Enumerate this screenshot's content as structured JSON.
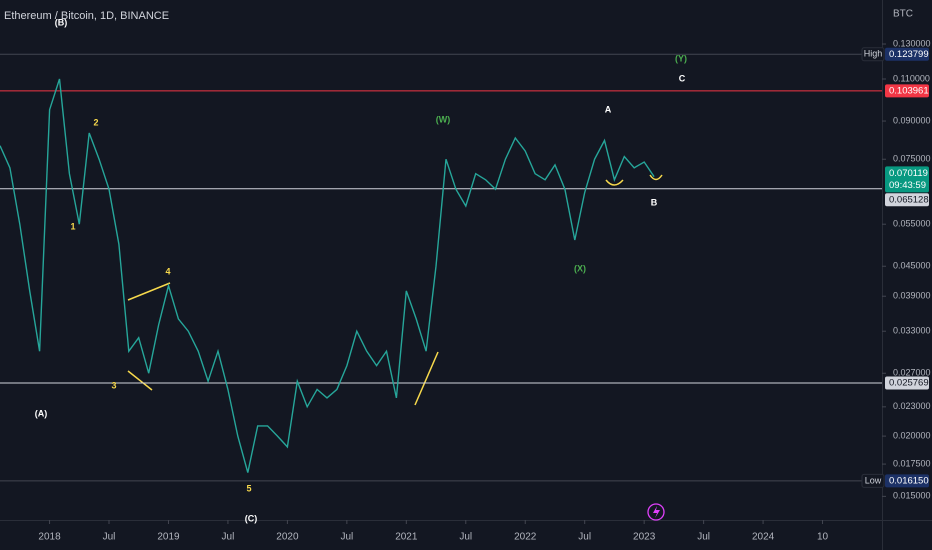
{
  "chart_data": {
    "type": "line",
    "title": "Ethereum / Bitcoin, 1D, BINANCE",
    "currency": "BTC",
    "color": "#26a69a",
    "log_scale": true,
    "x": [
      "2017-08",
      "2017-09",
      "2017-10",
      "2017-11",
      "2017-12",
      "2018-01",
      "2018-02",
      "2018-03",
      "2018-04",
      "2018-05",
      "2018-06",
      "2018-07",
      "2018-08",
      "2018-09",
      "2018-10",
      "2018-11",
      "2018-12",
      "2019-01",
      "2019-02",
      "2019-03",
      "2019-04",
      "2019-05",
      "2019-06",
      "2019-07",
      "2019-08",
      "2019-09",
      "2019-10",
      "2019-11",
      "2019-12",
      "2020-01",
      "2020-02",
      "2020-03",
      "2020-04",
      "2020-05",
      "2020-06",
      "2020-07",
      "2020-08",
      "2020-09",
      "2020-10",
      "2020-11",
      "2020-12",
      "2021-01",
      "2021-02",
      "2021-03",
      "2021-04",
      "2021-05",
      "2021-06",
      "2021-07",
      "2021-08",
      "2021-09",
      "2021-10",
      "2021-11",
      "2021-12",
      "2022-01",
      "2022-02",
      "2022-03",
      "2022-04",
      "2022-05",
      "2022-06",
      "2022-07",
      "2022-08",
      "2022-09",
      "2022-10",
      "2022-11",
      "2022-12",
      "2023-01",
      "2023-02"
    ],
    "values": [
      0.08,
      0.072,
      0.055,
      0.04,
      0.03,
      0.095,
      0.11,
      0.07,
      0.055,
      0.085,
      0.075,
      0.065,
      0.05,
      0.03,
      0.032,
      0.027,
      0.034,
      0.041,
      0.035,
      0.033,
      0.03,
      0.026,
      0.03,
      0.025,
      0.02,
      0.0168,
      0.021,
      0.021,
      0.02,
      0.019,
      0.026,
      0.023,
      0.025,
      0.024,
      0.025,
      0.028,
      0.033,
      0.03,
      0.028,
      0.03,
      0.024,
      0.04,
      0.035,
      0.03,
      0.045,
      0.075,
      0.065,
      0.06,
      0.07,
      0.068,
      0.065,
      0.075,
      0.083,
      0.078,
      0.07,
      0.068,
      0.073,
      0.065,
      0.051,
      0.064,
      0.075,
      0.082,
      0.068,
      0.076,
      0.072,
      0.074,
      0.069
    ],
    "xlim": [
      "2017-08",
      "2025-01"
    ],
    "xticks": [
      {
        "value": "2018-01",
        "label": "2018"
      },
      {
        "value": "2018-07",
        "label": "Jul"
      },
      {
        "value": "2019-01",
        "label": "2019"
      },
      {
        "value": "2019-07",
        "label": "Jul"
      },
      {
        "value": "2020-01",
        "label": "2020"
      },
      {
        "value": "2020-07",
        "label": "Jul"
      },
      {
        "value": "2021-01",
        "label": "2021"
      },
      {
        "value": "2021-07",
        "label": "Jul"
      },
      {
        "value": "2022-01",
        "label": "2022"
      },
      {
        "value": "2022-07",
        "label": "Jul"
      },
      {
        "value": "2023-01",
        "label": "2023"
      },
      {
        "value": "2023-07",
        "label": "Jul"
      },
      {
        "value": "2024-01",
        "label": "2024"
      },
      {
        "value": "2024-07",
        "label": "10"
      }
    ],
    "ylim": [
      0.0134,
      0.1604
    ],
    "yticks": [
      {
        "value": 0.13,
        "label": "0.130000"
      },
      {
        "value": 0.11,
        "label": "0.110000"
      },
      {
        "value": 0.09,
        "label": "0.090000"
      },
      {
        "value": 0.075,
        "label": "0.075000"
      },
      {
        "value": 0.055,
        "label": "0.055000"
      },
      {
        "value": 0.045,
        "label": "0.045000"
      },
      {
        "value": 0.039,
        "label": "0.039000"
      },
      {
        "value": 0.033,
        "label": "0.033000"
      },
      {
        "value": 0.027,
        "label": "0.027000"
      },
      {
        "value": 0.023,
        "label": "0.023000"
      },
      {
        "value": 0.02,
        "label": "0.020000"
      },
      {
        "value": 0.0175,
        "label": "0.017500"
      },
      {
        "value": 0.015,
        "label": "0.015000"
      }
    ],
    "price_lines": [
      {
        "tag": "High",
        "value": 0.123799,
        "label": "0.123799",
        "color": "#1c3166",
        "line_color": "#434651"
      },
      {
        "value": 0.103961,
        "label": "0.103961",
        "color": "#f23645",
        "line_color": "#f23645"
      },
      {
        "value": 0.070119,
        "label": "0.070119",
        "countdown": "09:43:59",
        "color": "#089981"
      },
      {
        "value": 0.065128,
        "label": "0.065128",
        "color": "#d1d4dc",
        "line_color": "#d1d4dc"
      },
      {
        "value": 0.025769,
        "label": "0.025769",
        "color": "#d1d4dc",
        "line_color": "#d1d4dc"
      },
      {
        "tag": "Low",
        "value": 0.01615,
        "label": "0.016150",
        "color": "#1c3166",
        "line_color": "#434651"
      }
    ],
    "annotations": [
      {
        "text": "(B)",
        "color": "#ffffff"
      },
      {
        "text": "(A)",
        "color": "#ffffff"
      },
      {
        "text": "(C)",
        "color": "#ffffff"
      },
      {
        "text": "1",
        "color": "#f7d94c"
      },
      {
        "text": "2",
        "color": "#f7d94c"
      },
      {
        "text": "3",
        "color": "#f7d94c"
      },
      {
        "text": "4",
        "color": "#f7d94c"
      },
      {
        "text": "5",
        "color": "#f7d94c"
      },
      {
        "text": "(W)",
        "color": "#4caf50"
      },
      {
        "text": "(X)",
        "color": "#4caf50"
      },
      {
        "text": "(Y)",
        "color": "#4caf50"
      },
      {
        "text": "A",
        "color": "#ffffff"
      },
      {
        "text": "B",
        "color": "#ffffff"
      },
      {
        "text": "C",
        "color": "#ffffff"
      }
    ]
  }
}
